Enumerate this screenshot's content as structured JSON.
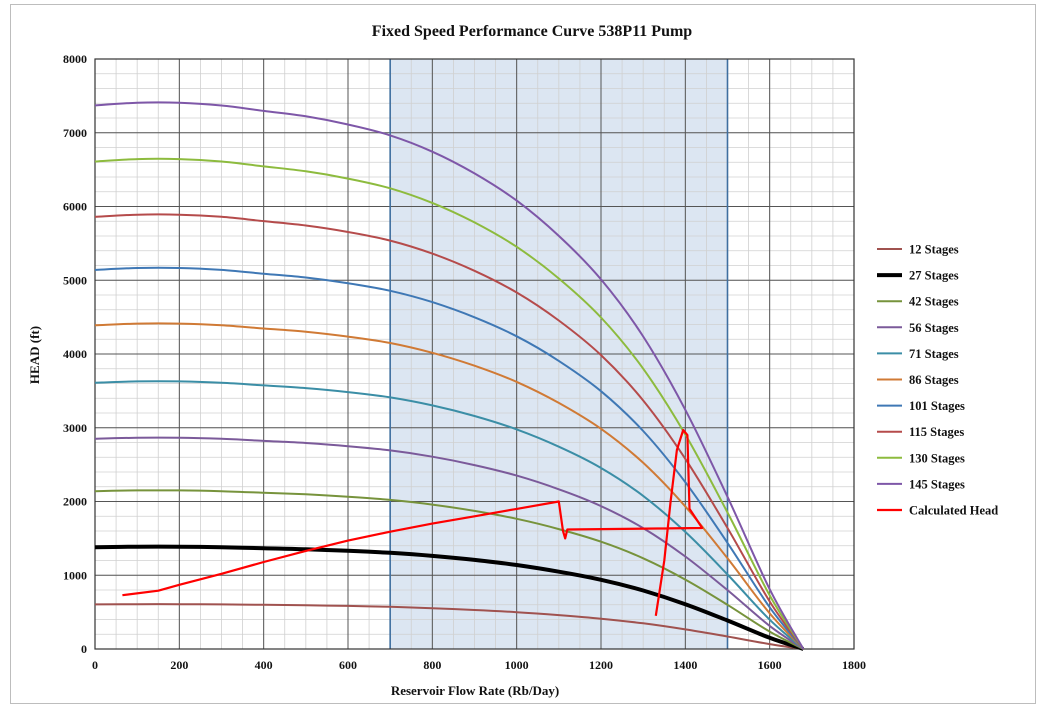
{
  "chart_data": {
    "type": "line",
    "title": "Fixed Speed Performance Curve  538P11 Pump",
    "xlabel": "Reservoir Flow Rate (Rb/Day)",
    "ylabel": "HEAD (ft)",
    "xlim": [
      0,
      1800
    ],
    "ylim": [
      0,
      8000
    ],
    "x_ticks": [
      0,
      200,
      400,
      600,
      800,
      1000,
      1200,
      1400,
      1600,
      1800
    ],
    "y_ticks": [
      0,
      1000,
      2000,
      3000,
      4000,
      5000,
      6000,
      7000,
      8000
    ],
    "x_minor_step": 50,
    "y_minor_step": 200,
    "grid": true,
    "legend_position": "right",
    "shaded_region": {
      "x_range": [
        700,
        1500
      ],
      "color": "#dce6f2"
    },
    "curve_shape": {
      "x": [
        0,
        100,
        200,
        300,
        400,
        500,
        600,
        700,
        800,
        900,
        1000,
        1100,
        1200,
        1300,
        1400,
        1500,
        1600,
        1680
      ],
      "fraction_of_shutoff": [
        1.0,
        1.005,
        1.005,
        1.0,
        0.99,
        0.98,
        0.965,
        0.945,
        0.915,
        0.875,
        0.825,
        0.76,
        0.68,
        0.575,
        0.44,
        0.28,
        0.11,
        0.0
      ]
    },
    "series": [
      {
        "name": "12 Stages",
        "color": "#a0524f",
        "width": 2.0,
        "shutoff_head": 605
      },
      {
        "name": "27 Stages",
        "color": "#000000",
        "width": 4.0,
        "shutoff_head": 1380
      },
      {
        "name": "42 Stages",
        "color": "#77933c",
        "width": 2.0,
        "shutoff_head": 2140
      },
      {
        "name": "56 Stages",
        "color": "#7b5a9a",
        "width": 2.0,
        "shutoff_head": 2850
      },
      {
        "name": "71 Stages",
        "color": "#3b8ea6",
        "width": 2.0,
        "shutoff_head": 3610
      },
      {
        "name": "86 Stages",
        "color": "#d07a35",
        "width": 2.0,
        "shutoff_head": 4390
      },
      {
        "name": "101 Stages",
        "color": "#3f78b5",
        "width": 2.0,
        "shutoff_head": 5140
      },
      {
        "name": "115 Stages",
        "color": "#b54b4b",
        "width": 2.0,
        "shutoff_head": 5860
      },
      {
        "name": "130 Stages",
        "color": "#8dbb3e",
        "width": 2.0,
        "shutoff_head": 6610
      },
      {
        "name": "145 Stages",
        "color": "#7e57a8",
        "width": 2.0,
        "shutoff_head": 7370
      },
      {
        "name": "Calculated Head",
        "color": "#ff0000",
        "width": 2.2,
        "x": [
          65,
          150,
          200,
          300,
          400,
          500,
          600,
          700,
          800,
          900,
          1000,
          1100,
          1110,
          1115,
          1120,
          1440,
          1410,
          1405,
          1395,
          1380,
          1365,
          1350,
          1330
        ],
        "y": [
          730,
          790,
          870,
          1020,
          1180,
          1330,
          1470,
          1590,
          1700,
          1800,
          1900,
          2000,
          1600,
          1500,
          1620,
          1640,
          1900,
          2900,
          2970,
          2700,
          2000,
          1200,
          450
        ]
      }
    ]
  }
}
